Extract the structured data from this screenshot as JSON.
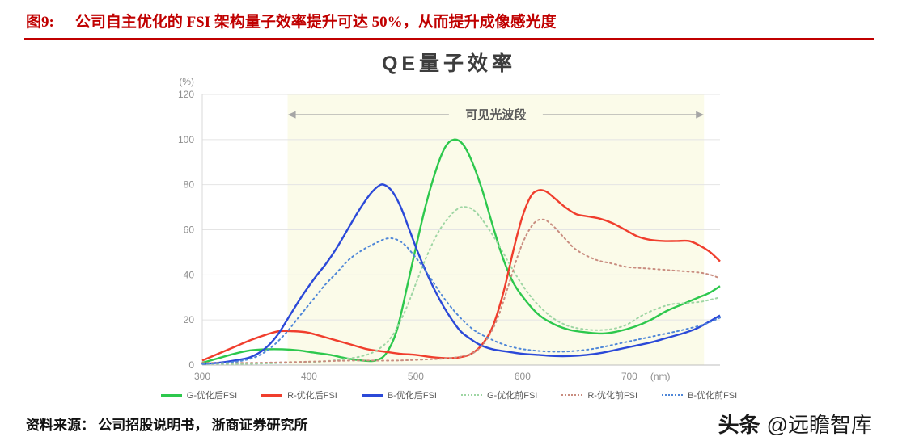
{
  "header": {
    "fig_label": "图9:",
    "title": "公司自主优化的 FSI 架构量子效率提升可达 50%，从而提升成像感光度"
  },
  "chart": {
    "title": "QE量子效率"
  },
  "chart_data": {
    "type": "line",
    "title": "QE量子效率",
    "xlabel": "(nm)",
    "ylabel": "(%)",
    "xlim": [
      300,
      785
    ],
    "ylim": [
      0,
      120
    ],
    "xticks": [
      300,
      400,
      500,
      600,
      700
    ],
    "yticks": [
      0,
      20,
      40,
      60,
      80,
      100,
      120
    ],
    "grid": "horizontal",
    "legend_position": "bottom",
    "band": {
      "label": "可见光波段",
      "from": 380,
      "to": 770,
      "color": "#fbfbe9",
      "arrow_y": 111,
      "arrow_color": "#a6a6a6",
      "label_color": "#595959"
    },
    "series": [
      {
        "name": "G-优化后FSI",
        "color": "#2dc84d",
        "style": "solid",
        "points": [
          [
            300,
            1
          ],
          [
            315,
            3
          ],
          [
            330,
            5
          ],
          [
            345,
            6.5
          ],
          [
            360,
            7
          ],
          [
            375,
            7
          ],
          [
            390,
            6.5
          ],
          [
            405,
            5.5
          ],
          [
            420,
            4.5
          ],
          [
            435,
            3
          ],
          [
            450,
            2
          ],
          [
            462,
            2
          ],
          [
            472,
            5
          ],
          [
            482,
            15
          ],
          [
            492,
            35
          ],
          [
            500,
            52
          ],
          [
            510,
            72
          ],
          [
            520,
            88
          ],
          [
            528,
            97
          ],
          [
            536,
            100
          ],
          [
            544,
            98
          ],
          [
            552,
            91
          ],
          [
            562,
            78
          ],
          [
            572,
            62
          ],
          [
            582,
            47
          ],
          [
            592,
            36
          ],
          [
            604,
            28
          ],
          [
            616,
            22
          ],
          [
            630,
            18
          ],
          [
            645,
            15.5
          ],
          [
            660,
            14.5
          ],
          [
            675,
            14
          ],
          [
            690,
            15
          ],
          [
            705,
            17
          ],
          [
            720,
            20
          ],
          [
            735,
            24
          ],
          [
            750,
            27
          ],
          [
            765,
            30
          ],
          [
            775,
            32
          ],
          [
            785,
            35
          ]
        ]
      },
      {
        "name": "R-优化后FSI",
        "color": "#f03e2d",
        "style": "solid",
        "points": [
          [
            300,
            2
          ],
          [
            315,
            5
          ],
          [
            330,
            8
          ],
          [
            345,
            11
          ],
          [
            360,
            13.5
          ],
          [
            372,
            15
          ],
          [
            385,
            15
          ],
          [
            398,
            14.5
          ],
          [
            410,
            13
          ],
          [
            425,
            11
          ],
          [
            440,
            9
          ],
          [
            455,
            7
          ],
          [
            470,
            6
          ],
          [
            485,
            5
          ],
          [
            500,
            4.5
          ],
          [
            515,
            3.5
          ],
          [
            530,
            3
          ],
          [
            542,
            3.5
          ],
          [
            552,
            5
          ],
          [
            562,
            9
          ],
          [
            572,
            17
          ],
          [
            582,
            32
          ],
          [
            592,
            52
          ],
          [
            600,
            66
          ],
          [
            608,
            75
          ],
          [
            615,
            77.5
          ],
          [
            622,
            77
          ],
          [
            630,
            74
          ],
          [
            640,
            70
          ],
          [
            650,
            67
          ],
          [
            660,
            66
          ],
          [
            672,
            65
          ],
          [
            684,
            63
          ],
          [
            696,
            60
          ],
          [
            708,
            57
          ],
          [
            720,
            55.5
          ],
          [
            732,
            55
          ],
          [
            744,
            55
          ],
          [
            756,
            55
          ],
          [
            766,
            53
          ],
          [
            776,
            50
          ],
          [
            785,
            46
          ]
        ]
      },
      {
        "name": "B-优化后FSI",
        "color": "#2b49d8",
        "style": "solid",
        "points": [
          [
            300,
            0.5
          ],
          [
            315,
            1
          ],
          [
            330,
            2
          ],
          [
            345,
            3.5
          ],
          [
            358,
            7
          ],
          [
            370,
            13
          ],
          [
            382,
            22
          ],
          [
            394,
            31
          ],
          [
            406,
            39
          ],
          [
            416,
            45
          ],
          [
            426,
            52
          ],
          [
            436,
            60
          ],
          [
            446,
            68
          ],
          [
            456,
            75
          ],
          [
            464,
            79
          ],
          [
            470,
            80
          ],
          [
            478,
            77
          ],
          [
            486,
            70
          ],
          [
            494,
            60
          ],
          [
            502,
            50
          ],
          [
            510,
            41
          ],
          [
            518,
            33
          ],
          [
            526,
            26
          ],
          [
            534,
            20
          ],
          [
            542,
            15
          ],
          [
            550,
            12
          ],
          [
            560,
            9
          ],
          [
            572,
            7
          ],
          [
            585,
            6
          ],
          [
            600,
            5
          ],
          [
            615,
            4.5
          ],
          [
            630,
            4
          ],
          [
            645,
            4
          ],
          [
            660,
            4.5
          ],
          [
            675,
            5.5
          ],
          [
            690,
            7
          ],
          [
            705,
            8.5
          ],
          [
            720,
            10
          ],
          [
            735,
            12
          ],
          [
            750,
            14
          ],
          [
            762,
            16
          ],
          [
            774,
            19
          ],
          [
            785,
            22
          ]
        ]
      },
      {
        "name": "G-优化前FSI",
        "color": "#9fd6a4",
        "style": "dotted",
        "points": [
          [
            300,
            0.5
          ],
          [
            340,
            0.5
          ],
          [
            380,
            1
          ],
          [
            410,
            1.5
          ],
          [
            430,
            2.5
          ],
          [
            450,
            4
          ],
          [
            465,
            7
          ],
          [
            478,
            13
          ],
          [
            490,
            24
          ],
          [
            500,
            36
          ],
          [
            510,
            48
          ],
          [
            520,
            58
          ],
          [
            530,
            65
          ],
          [
            540,
            69.5
          ],
          [
            548,
            70
          ],
          [
            556,
            68
          ],
          [
            566,
            62
          ],
          [
            578,
            53
          ],
          [
            590,
            43
          ],
          [
            602,
            34
          ],
          [
            614,
            27
          ],
          [
            628,
            21
          ],
          [
            642,
            17.5
          ],
          [
            656,
            16
          ],
          [
            670,
            15.5
          ],
          [
            684,
            16
          ],
          [
            698,
            18
          ],
          [
            712,
            22
          ],
          [
            726,
            25
          ],
          [
            740,
            27
          ],
          [
            754,
            27.5
          ],
          [
            766,
            28
          ],
          [
            776,
            29
          ],
          [
            785,
            30
          ]
        ]
      },
      {
        "name": "R-优化前FSI",
        "color": "#c98d80",
        "style": "dotted",
        "points": [
          [
            300,
            1
          ],
          [
            350,
            1
          ],
          [
            400,
            1.5
          ],
          [
            440,
            2
          ],
          [
            480,
            2
          ],
          [
            510,
            2.5
          ],
          [
            530,
            3
          ],
          [
            545,
            4
          ],
          [
            556,
            6
          ],
          [
            566,
            11
          ],
          [
            576,
            20
          ],
          [
            586,
            34
          ],
          [
            596,
            49
          ],
          [
            604,
            58
          ],
          [
            612,
            63.5
          ],
          [
            620,
            64.5
          ],
          [
            628,
            62
          ],
          [
            638,
            57
          ],
          [
            648,
            52
          ],
          [
            658,
            49
          ],
          [
            670,
            46.5
          ],
          [
            684,
            45
          ],
          [
            698,
            43.5
          ],
          [
            712,
            43
          ],
          [
            726,
            42.5
          ],
          [
            740,
            42
          ],
          [
            754,
            41.5
          ],
          [
            766,
            41
          ],
          [
            776,
            40
          ],
          [
            785,
            38.5
          ]
        ]
      },
      {
        "name": "B-优化前FSI",
        "color": "#4f87d8",
        "style": "dotted",
        "points": [
          [
            300,
            0.5
          ],
          [
            320,
            1
          ],
          [
            338,
            2
          ],
          [
            352,
            4
          ],
          [
            365,
            8
          ],
          [
            378,
            14
          ],
          [
            390,
            21
          ],
          [
            402,
            28
          ],
          [
            414,
            35
          ],
          [
            426,
            41
          ],
          [
            438,
            47
          ],
          [
            450,
            51
          ],
          [
            462,
            54
          ],
          [
            472,
            56
          ],
          [
            480,
            56
          ],
          [
            488,
            54
          ],
          [
            496,
            50
          ],
          [
            506,
            44
          ],
          [
            516,
            37
          ],
          [
            526,
            30
          ],
          [
            536,
            24
          ],
          [
            546,
            19
          ],
          [
            556,
            15
          ],
          [
            568,
            12
          ],
          [
            580,
            9.5
          ],
          [
            595,
            7.5
          ],
          [
            610,
            6.5
          ],
          [
            625,
            6
          ],
          [
            640,
            6
          ],
          [
            655,
            6.5
          ],
          [
            670,
            7.5
          ],
          [
            685,
            9
          ],
          [
            700,
            10.5
          ],
          [
            715,
            12
          ],
          [
            730,
            13.5
          ],
          [
            745,
            15
          ],
          [
            758,
            16.5
          ],
          [
            770,
            18
          ],
          [
            785,
            21
          ]
        ]
      }
    ],
    "axis_colors": {
      "gridline": "#e4e4e4",
      "axis_line": "#bdbdbd",
      "tick_label": "#8f8f8f"
    }
  },
  "footer": {
    "source": "资料来源： 公司招股说明书， 浙商证券研究所",
    "brand_name": "头条",
    "brand_handle": "@远瞻智库"
  }
}
